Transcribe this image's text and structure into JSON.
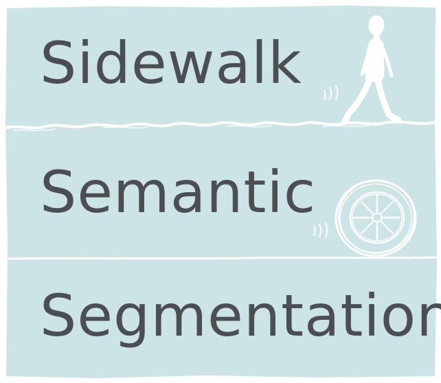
{
  "colors": {
    "panel": "#cde4e7",
    "text": "#4b4e52",
    "sketch": "#ffffff"
  },
  "title": {
    "line1": "Sidewalk",
    "line2": "Semantic",
    "line3": "Segmentation"
  },
  "icons": {
    "walker": "walking-person-icon",
    "wheel": "rolling-wheel-icon"
  }
}
